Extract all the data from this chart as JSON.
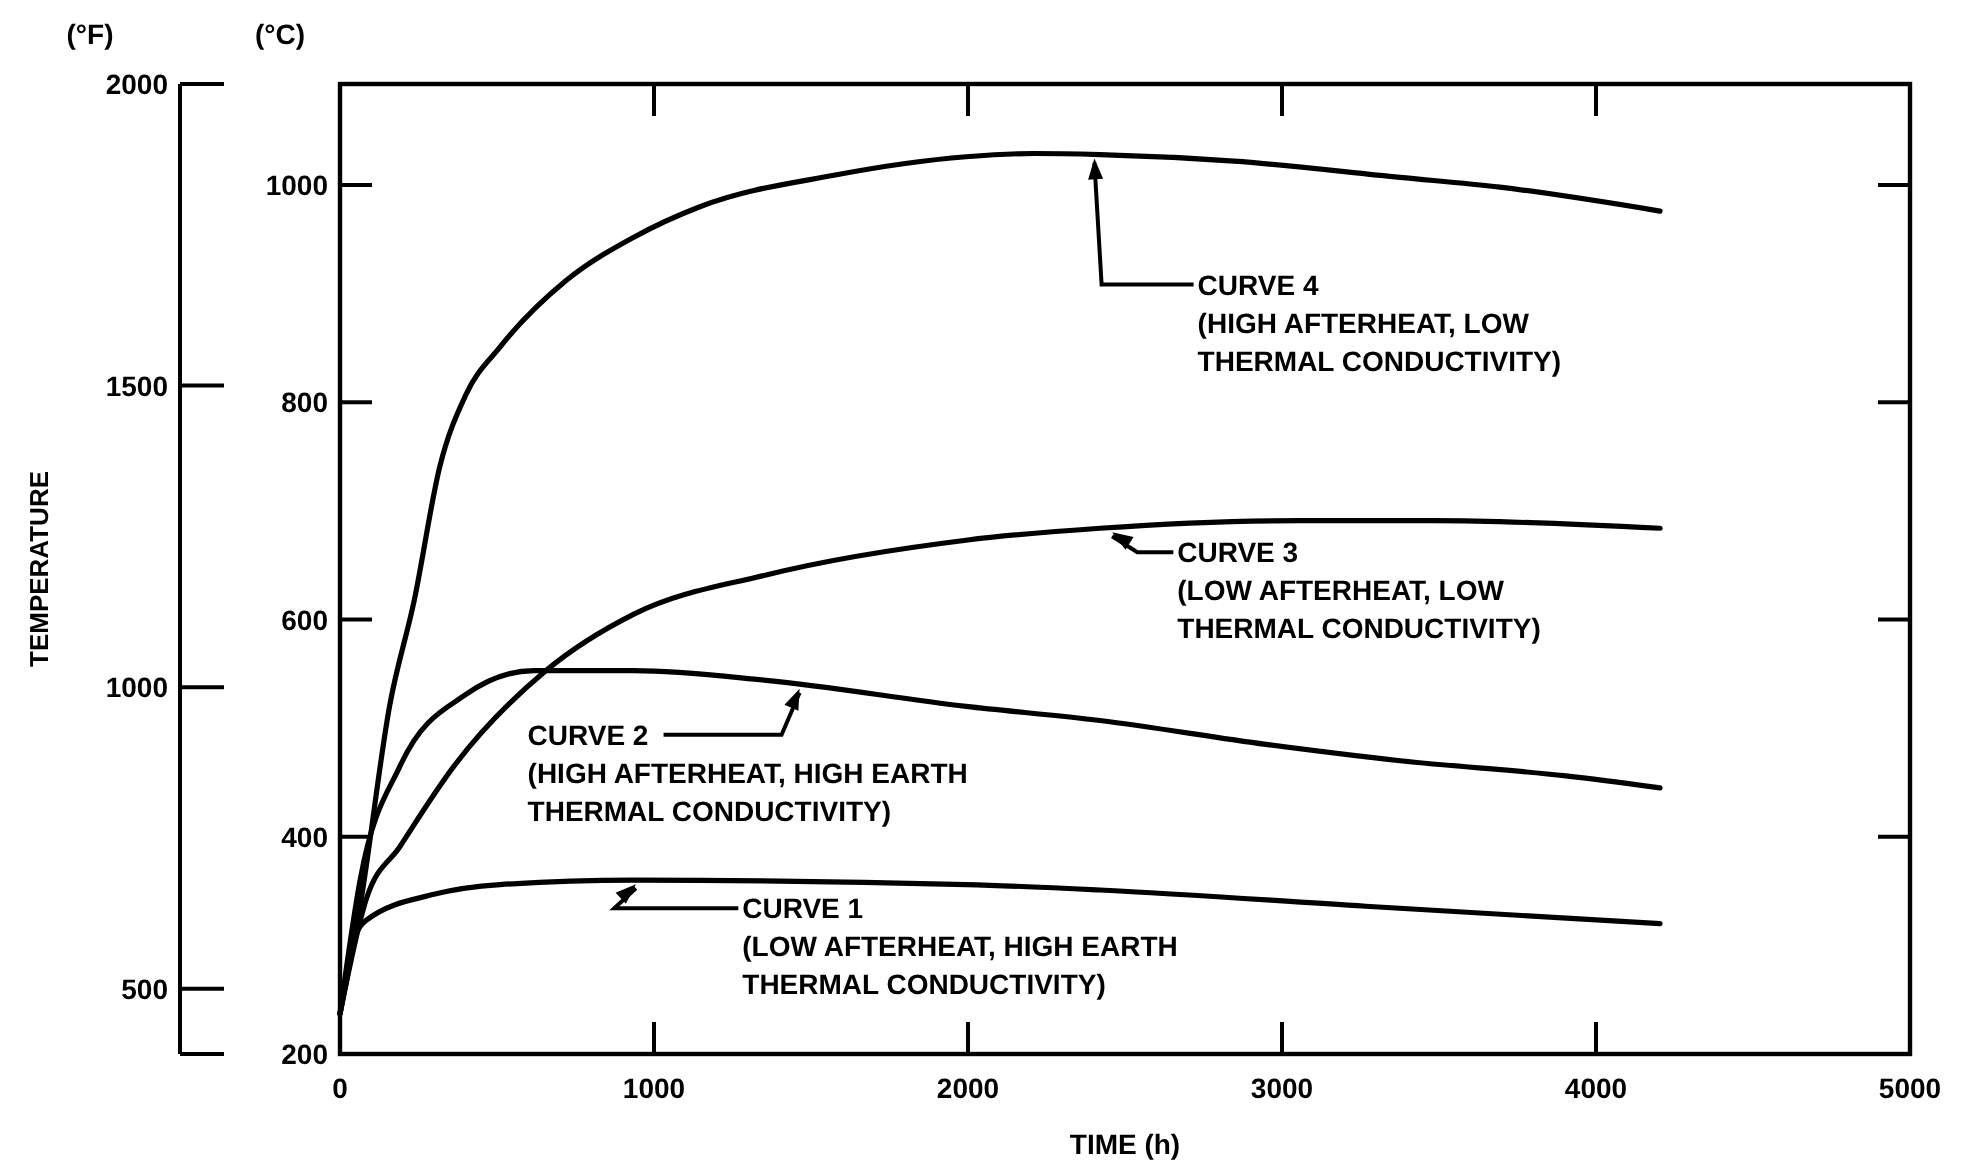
{
  "chart_data": {
    "type": "line",
    "xlabel": "TIME (h)",
    "ylabel": "(°C)",
    "y2label": "(°F)",
    "xlim": [
      0,
      5000
    ],
    "xticks": [
      0,
      1000,
      2000,
      3000,
      4000,
      5000
    ],
    "ylim": [
      200,
      1093
    ],
    "yticks": [
      200,
      400,
      600,
      800,
      1000
    ],
    "y2lim": [
      392,
      2000
    ],
    "y2ticks": [
      {
        "value": 392,
        "label": null
      },
      500,
      1000,
      1500,
      2000
    ],
    "grid": false,
    "marker": "none",
    "line_style": "solid",
    "series": [
      {
        "color": "#000000",
        "x": [
          0,
          45,
          83,
          299,
          510,
          936,
          1994,
          2420,
          3267,
          4204
        ],
        "values": [
          237,
          305,
          323,
          347,
          356,
          360,
          356,
          351,
          336,
          320
        ]
      },
      {
        "color": "#000000",
        "x": [
          0,
          64,
          191,
          401,
          618,
          936,
          1357,
          1994,
          2420,
          2949,
          3376,
          3904,
          4204
        ],
        "values": [
          237,
          360,
          465,
          531,
          553,
          553,
          544,
          520,
          507,
          485,
          470,
          456,
          445
        ]
      },
      {
        "color": "#000000",
        "x": [
          0,
          83,
          191,
          363,
          656,
          936,
          1357,
          1994,
          2420,
          3057,
          3484,
          4204
        ],
        "values": [
          237,
          342,
          391,
          465,
          553,
          605,
          641,
          673,
          684,
          691,
          691,
          684
        ]
      },
      {
        "color": "#000000",
        "x": [
          0,
          64,
          159,
          236,
          318,
          401,
          510,
          720,
          936,
          1146,
          1573,
          1994,
          2210,
          2420,
          2847,
          3376,
          3694,
          4204
        ],
        "values": [
          237,
          336,
          522,
          617,
          741,
          807,
          851,
          912,
          952,
          980,
          1009,
          1026,
          1029,
          1028,
          1022,
          1007,
          998,
          976
        ]
      }
    ],
    "annotations": [
      "TEMPERATURE",
      {
        "text": "CURVE 1\n(LOW AFTERHEAT, HIGH EARTH\nTHERMAL CONDUCTIVITY)",
        "x": 950,
        "y": 360
      },
      {
        "text": "CURVE 2\n(HIGH AFTERHEAT, HIGH EARTH\nTHERMAL CONDUCTIVITY)",
        "x": 1470,
        "y": 540
      },
      {
        "text": "CURVE 3\n(LOW AFTERHEAT, LOW\nTHERMAL CONDUCTIVITY)",
        "x": 2450,
        "y": 684
      },
      {
        "text": "CURVE 4\n(HIGH AFTERHEAT, LOW\nTHERMAL CONDUCTIVITY)",
        "x": 2400,
        "y": 1028
      }
    ]
  }
}
